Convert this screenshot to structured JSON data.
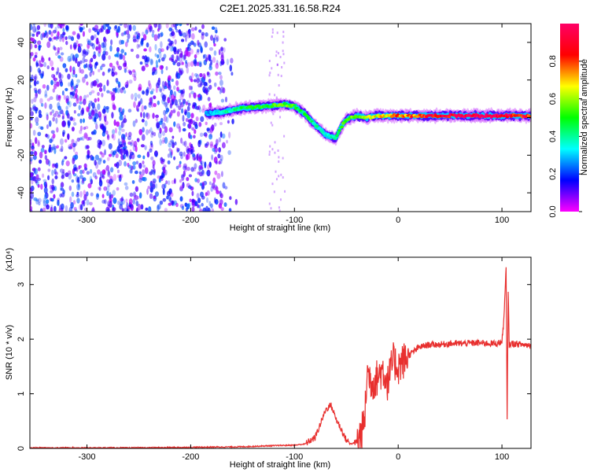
{
  "title": "C2E1.2025.331.16.58.R24",
  "chart_data": [
    {
      "type": "heatmap",
      "xlabel": "Height of straight line (km)",
      "ylabel": "Frequency (Hz)",
      "xlim": [
        -355,
        128
      ],
      "ylim": [
        -50,
        50
      ],
      "xticks": [
        -300,
        -200,
        -100,
        0,
        100
      ],
      "xtick_labels": [
        "-300",
        "-200",
        "-100",
        "0",
        "100"
      ],
      "yticks": [
        -40,
        -20,
        0,
        20,
        40
      ],
      "ytick_labels": [
        "-40",
        "-20",
        "0",
        "20",
        "40"
      ],
      "colorbar": {
        "label": "Normalized spectral amplitude",
        "range": [
          0,
          1
        ],
        "ticks": [
          0.0,
          0.2,
          0.4,
          0.6,
          0.8
        ],
        "tick_labels": [
          "0.0",
          "0.2",
          "0.4",
          "0.6",
          "0.8"
        ],
        "colormap": [
          "#ff00ff",
          "#0000ff",
          "#00ffff",
          "#00ff00",
          "#ffff00",
          "#ff0000",
          "#ff0066"
        ]
      },
      "ridge": {
        "name": "",
        "x": [
          -185,
          -170,
          -150,
          -130,
          -110,
          -100,
          -90,
          -80,
          -70,
          -60,
          -55,
          -50,
          -45,
          -40,
          -30,
          -20,
          -10,
          0,
          20,
          40,
          60,
          80,
          100,
          110,
          128
        ],
        "y": [
          2,
          3,
          5,
          6,
          7,
          6,
          2,
          -4,
          -9,
          -11,
          -5,
          -1,
          0,
          1,
          0,
          1,
          1,
          1,
          1,
          1,
          1,
          1,
          1,
          1,
          1
        ],
        "amplitude": [
          0.25,
          0.35,
          0.45,
          0.5,
          0.55,
          0.5,
          0.45,
          0.4,
          0.35,
          0.4,
          0.5,
          0.55,
          0.55,
          0.6,
          0.6,
          0.65,
          0.7,
          0.75,
          0.8,
          0.9,
          0.95,
          1.0,
          0.95,
          0.9,
          0.85
        ]
      },
      "noise_region": {
        "x_range": [
          -355,
          -155
        ],
        "amplitude": 0.15
      }
    },
    {
      "type": "line",
      "xlabel": "Height of straight line (km)",
      "ylabel": "SNR (10 * v/v)",
      "y_multiplier": "(x10⁴)",
      "xlim": [
        -355,
        128
      ],
      "ylim": [
        0,
        3.5
      ],
      "xticks": [
        -300,
        -200,
        -100,
        0,
        100
      ],
      "xtick_labels": [
        "-300",
        "-200",
        "-100",
        "0",
        "100"
      ],
      "yticks": [
        0,
        1,
        2,
        3
      ],
      "ytick_labels": [
        "0",
        "1",
        "2",
        "3"
      ],
      "line_color": "#e8302f",
      "series": [
        {
          "name": "",
          "x": [
            -355,
            -250,
            -200,
            -150,
            -120,
            -100,
            -90,
            -80,
            -75,
            -70,
            -65,
            -60,
            -55,
            -50,
            -45,
            -40,
            -35,
            -32,
            -30,
            -25,
            -20,
            -15,
            -10,
            -5,
            0,
            10,
            20,
            30,
            40,
            50,
            60,
            70,
            80,
            90,
            95,
            100,
            102,
            104,
            105,
            106,
            107,
            110,
            115,
            120,
            128
          ],
          "y": [
            0.01,
            0.01,
            0.02,
            0.03,
            0.05,
            0.06,
            0.08,
            0.2,
            0.45,
            0.7,
            0.8,
            0.55,
            0.35,
            0.15,
            0.08,
            0.12,
            0.3,
            0.6,
            1.4,
            1.2,
            1.3,
            1.45,
            1.2,
            1.6,
            1.5,
            1.7,
            1.85,
            1.9,
            1.9,
            1.92,
            1.92,
            1.93,
            1.93,
            1.92,
            1.92,
            1.95,
            2.4,
            3.3,
            0.5,
            2.9,
            1.9,
            1.92,
            1.91,
            1.9,
            1.89
          ]
        }
      ]
    }
  ]
}
